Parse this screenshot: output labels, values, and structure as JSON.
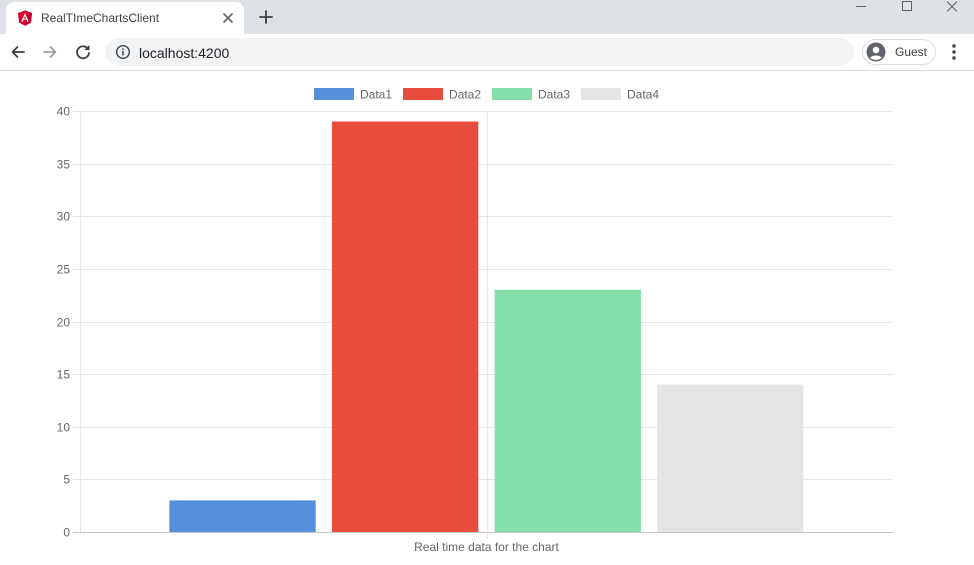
{
  "browser": {
    "tab_title": "RealTImeChartsClient",
    "url": "localhost:4200",
    "profile_label": "Guest"
  },
  "chart_data": {
    "type": "bar",
    "categories": [
      ""
    ],
    "series": [
      {
        "name": "Data1",
        "values": [
          3
        ],
        "color": "#5590dc"
      },
      {
        "name": "Data2",
        "values": [
          39
        ],
        "color": "#e84c3d"
      },
      {
        "name": "Data3",
        "values": [
          23
        ],
        "color": "#84e0aa"
      },
      {
        "name": "Data4",
        "values": [
          14
        ],
        "color": "#e4e5e7"
      }
    ],
    "title": "",
    "xlabel": "Real time data for the chart",
    "ylabel": "",
    "ylim": [
      0,
      40
    ],
    "yticks": [
      "0",
      "5",
      "10",
      "15",
      "20",
      "25",
      "30",
      "35",
      "40"
    ],
    "grid": true,
    "legend_position": "top"
  }
}
